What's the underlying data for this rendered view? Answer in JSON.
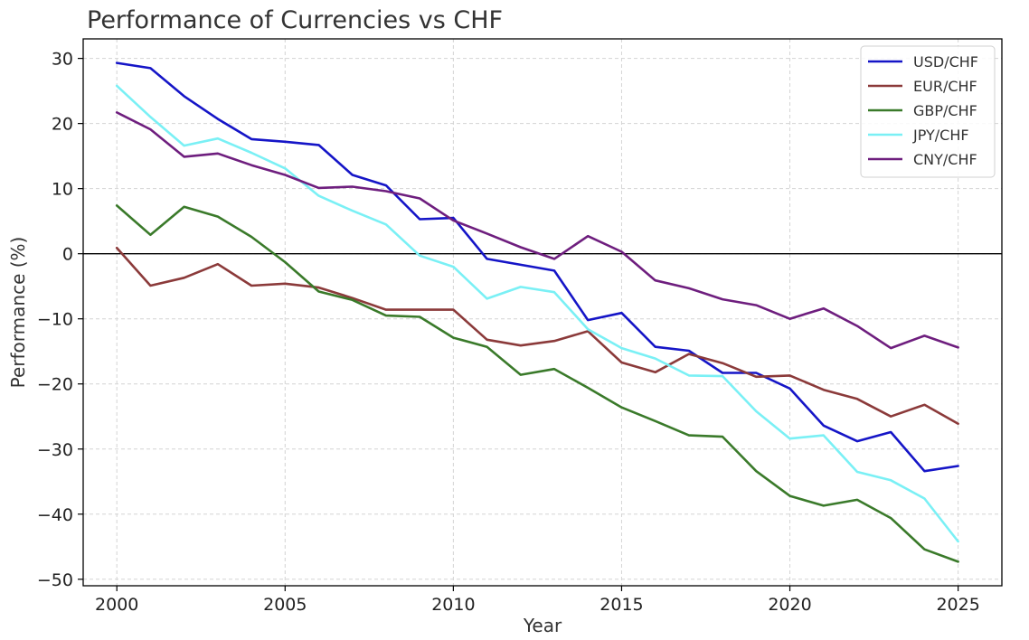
{
  "chart_data": {
    "type": "line",
    "title": "Performance of Currencies vs CHF",
    "xlabel": "Year",
    "ylabel": "Performance (%)",
    "xlim": [
      1999,
      2026.3
    ],
    "ylim": [
      -51,
      33
    ],
    "xticks": [
      2000,
      2005,
      2010,
      2015,
      2020,
      2025
    ],
    "yticks": [
      30,
      20,
      10,
      0,
      -10,
      -20,
      -30,
      -40,
      -50
    ],
    "ytick_labels": [
      "30",
      "20",
      "10",
      "0",
      "−10",
      "−20",
      "−30",
      "−40",
      "−50"
    ],
    "grid": true,
    "grid_style": "dashed",
    "zero_line": true,
    "legend_position": "top-right",
    "x": [
      2000,
      2001,
      2002,
      2003,
      2004,
      2005,
      2006,
      2007,
      2008,
      2009,
      2010,
      2011,
      2012,
      2013,
      2014,
      2015,
      2016,
      2017,
      2018,
      2019,
      2020,
      2021,
      2022,
      2023,
      2024,
      2025
    ],
    "series": [
      {
        "name": "USD/CHF",
        "color": "#1515c7",
        "values": [
          29.3,
          28.5,
          24.2,
          20.7,
          17.6,
          17.2,
          16.7,
          12.1,
          10.5,
          5.3,
          5.5,
          -0.8,
          -1.7,
          -2.6,
          -10.2,
          -9.1,
          -14.3,
          -14.9,
          -18.3,
          -18.3,
          -20.7,
          -26.4,
          -28.8,
          -27.4,
          -33.4,
          -32.6
        ]
      },
      {
        "name": "EUR/CHF",
        "color": "#8b3a3a",
        "values": [
          0.9,
          -4.9,
          -3.7,
          -1.6,
          -4.9,
          -4.6,
          -5.2,
          -6.8,
          -8.6,
          -8.6,
          -8.6,
          -13.2,
          -14.1,
          -13.4,
          -11.9,
          -16.7,
          -18.2,
          -15.4,
          -16.8,
          -18.9,
          -18.7,
          -20.9,
          -22.3,
          -25.0,
          -23.2,
          -26.1
        ]
      },
      {
        "name": "GBP/CHF",
        "color": "#3a7a2a",
        "values": [
          7.4,
          2.9,
          7.2,
          5.7,
          2.6,
          -1.3,
          -5.8,
          -7.1,
          -9.5,
          -9.7,
          -12.9,
          -14.3,
          -18.6,
          -17.7,
          -20.6,
          -23.6,
          -25.7,
          -27.9,
          -28.1,
          -33.4,
          -37.2,
          -38.7,
          -37.8,
          -40.6,
          -45.4,
          -47.3
        ]
      },
      {
        "name": "JPY/CHF",
        "color": "#7af0f5",
        "values": [
          25.8,
          21.0,
          16.6,
          17.7,
          15.5,
          13.1,
          8.9,
          6.6,
          4.5,
          -0.3,
          -2.0,
          -6.9,
          -5.1,
          -5.9,
          -11.6,
          -14.5,
          -16.1,
          -18.7,
          -18.8,
          -24.2,
          -28.4,
          -27.9,
          -33.5,
          -34.8,
          -37.6,
          -44.2
        ]
      },
      {
        "name": "CNY/CHF",
        "color": "#6e1e7e",
        "values": [
          21.7,
          19.1,
          14.9,
          15.4,
          13.6,
          12.1,
          10.1,
          10.3,
          9.6,
          8.5,
          5.1,
          3.1,
          1.0,
          -0.8,
          2.7,
          0.3,
          -4.1,
          -5.3,
          -7.0,
          -7.9,
          -10.0,
          -8.4,
          -11.1,
          -14.5,
          -12.6,
          -14.4
        ]
      }
    ]
  }
}
